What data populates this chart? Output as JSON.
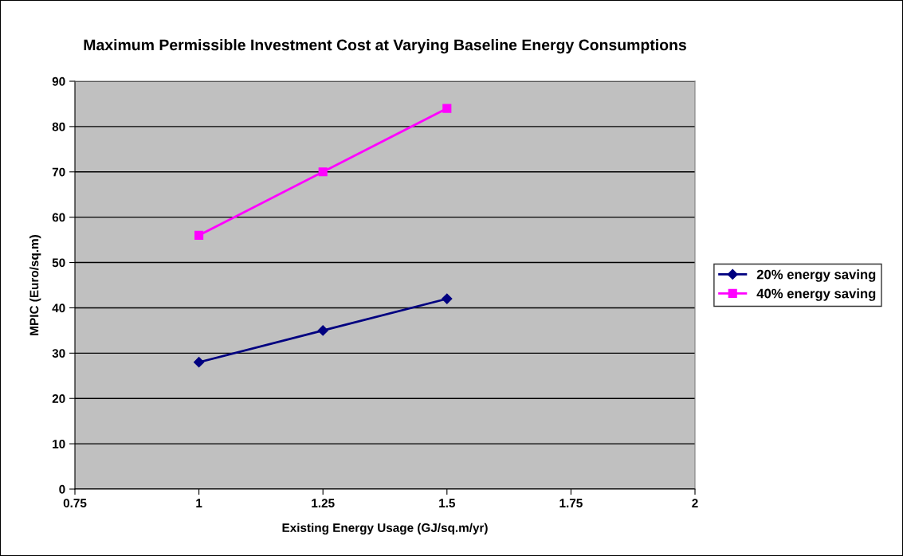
{
  "chart_data": {
    "type": "line",
    "title": "Maximum Permissible Investment Cost at Varying Baseline Energy Consumptions",
    "xlabel": "Existing Energy Usage (GJ/sq.m/yr)",
    "ylabel": "MPIC (Euro/sq.m)",
    "x": [
      1,
      1.25,
      1.5
    ],
    "series": [
      {
        "name": "20% energy saving",
        "color": "#000080",
        "marker": "diamond",
        "values": [
          28,
          35,
          42
        ]
      },
      {
        "name": "40% energy saving",
        "color": "#ff00ff",
        "marker": "square",
        "values": [
          56,
          70,
          84
        ]
      }
    ],
    "xlim": [
      0.75,
      2
    ],
    "xticks": [
      0.75,
      1,
      1.25,
      1.5,
      1.75,
      2
    ],
    "ylim": [
      0,
      90
    ],
    "yticks": [
      0,
      10,
      20,
      30,
      40,
      50,
      60,
      70,
      80,
      90
    ],
    "grid": "y",
    "legend": "right",
    "line_style": "solid"
  }
}
